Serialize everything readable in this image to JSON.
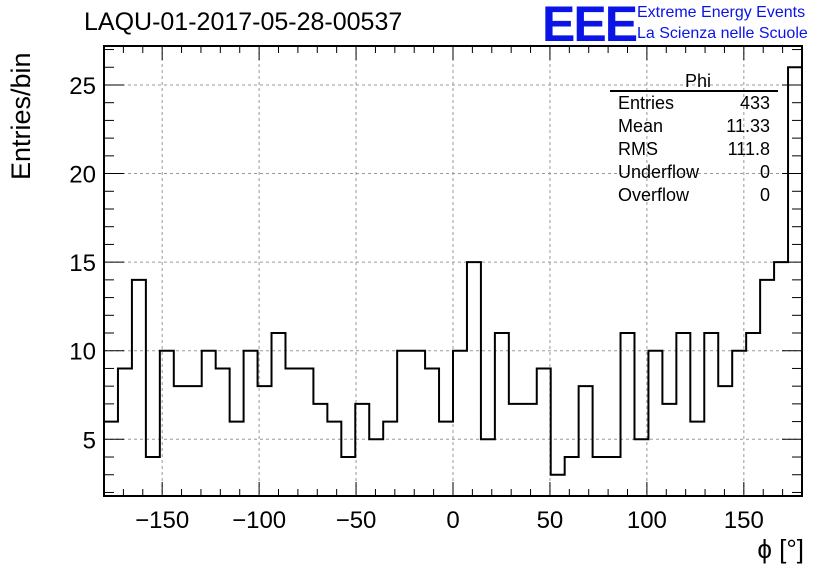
{
  "title": "LAQU-01-2017-05-28-00537",
  "logo": {
    "mark": "EEE",
    "line1": "Extreme Energy Events",
    "line2": "La Scienza nelle Scuole",
    "color": "#0a14e6"
  },
  "stats_box": {
    "name": "Phi",
    "rows": [
      {
        "label": "Entries",
        "value": "433"
      },
      {
        "label": "Mean",
        "value": "11.33"
      },
      {
        "label": "RMS",
        "value": "111.8"
      },
      {
        "label": "Underflow",
        "value": "0"
      },
      {
        "label": "Overflow",
        "value": "0"
      }
    ]
  },
  "chart_data": {
    "type": "bar",
    "histogram": "step",
    "xlabel": "ϕ [°]",
    "ylabel": "Entries/bin",
    "xlim": [
      -180,
      180
    ],
    "ylim": [
      1.8,
      27.2
    ],
    "bin_width": 7.2,
    "grid": true,
    "xticks": [
      -150,
      -100,
      -50,
      0,
      50,
      100,
      150
    ],
    "xtick_labels": [
      "−150",
      "−100",
      "−50",
      "0",
      "50",
      "100",
      "150"
    ],
    "yticks": [
      5,
      10,
      15,
      20,
      25
    ],
    "ytick_labels": [
      "5",
      "10",
      "15",
      "20",
      "25"
    ],
    "values": [
      6,
      9,
      14,
      4,
      10,
      8,
      8,
      10,
      9,
      6,
      10,
      8,
      11,
      9,
      9,
      7,
      6,
      4,
      7,
      5,
      6,
      10,
      10,
      9,
      6,
      10,
      15,
      5,
      11,
      7,
      7,
      9,
      3,
      4,
      8,
      4,
      4,
      11,
      5,
      10,
      7,
      11,
      6,
      11,
      8,
      10,
      11,
      14,
      15,
      26
    ]
  }
}
